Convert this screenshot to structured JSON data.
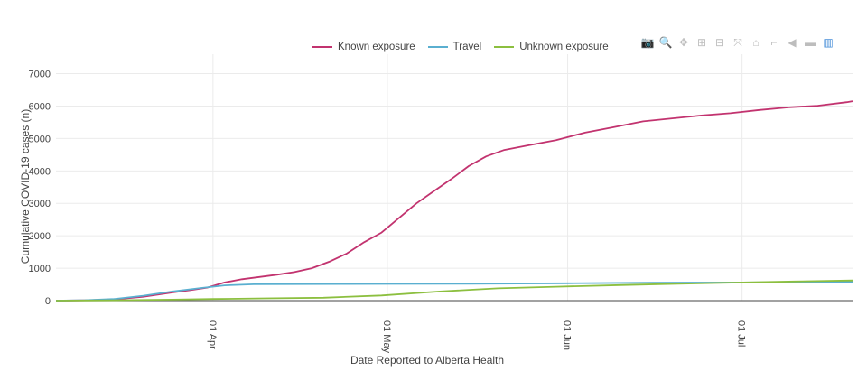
{
  "modebar": {
    "buttons": [
      {
        "name": "camera-icon",
        "glyph": "📷"
      },
      {
        "name": "zoom-icon",
        "glyph": "🔍"
      },
      {
        "name": "pan-icon",
        "glyph": "✥"
      },
      {
        "name": "zoom-in-icon",
        "glyph": "⊞"
      },
      {
        "name": "zoom-out-icon",
        "glyph": "⊟"
      },
      {
        "name": "autoscale-icon",
        "glyph": "⤧"
      },
      {
        "name": "home-icon",
        "glyph": "⌂"
      },
      {
        "name": "spike-lines-icon",
        "glyph": "⌐"
      },
      {
        "name": "hover-closest-icon",
        "glyph": "◀"
      },
      {
        "name": "hover-compare-icon",
        "glyph": "▬"
      },
      {
        "name": "plotly-logo-icon",
        "glyph": "▥"
      }
    ]
  },
  "chart_data": {
    "type": "line",
    "title": "",
    "xlabel": "Date Reported to Alberta Health",
    "ylabel": "Cumulative COVID-19 cases (n)",
    "xlim": [
      "2020-03-05",
      "2020-07-20"
    ],
    "ylim": [
      0,
      7600
    ],
    "yticks": [
      0,
      1000,
      2000,
      3000,
      4000,
      5000,
      6000,
      7000
    ],
    "xticks": [
      {
        "date": "2020-04-01",
        "label": "01 Apr"
      },
      {
        "date": "2020-05-01",
        "label": "01 May"
      },
      {
        "date": "2020-06-01",
        "label": "01 Jun"
      },
      {
        "date": "2020-07-01",
        "label": "01 Jul"
      }
    ],
    "grid": true,
    "legend_position": "top",
    "series": [
      {
        "name": "Known exposure",
        "color": "#c2336f",
        "points": [
          [
            "2020-03-05",
            0
          ],
          [
            "2020-03-10",
            10
          ],
          [
            "2020-03-15",
            40
          ],
          [
            "2020-03-20",
            120
          ],
          [
            "2020-03-25",
            250
          ],
          [
            "2020-03-28",
            320
          ],
          [
            "2020-03-31",
            400
          ],
          [
            "2020-04-03",
            560
          ],
          [
            "2020-04-06",
            660
          ],
          [
            "2020-04-09",
            730
          ],
          [
            "2020-04-12",
            800
          ],
          [
            "2020-04-15",
            880
          ],
          [
            "2020-04-18",
            1000
          ],
          [
            "2020-04-21",
            1200
          ],
          [
            "2020-04-24",
            1450
          ],
          [
            "2020-04-27",
            1800
          ],
          [
            "2020-04-30",
            2100
          ],
          [
            "2020-05-03",
            2550
          ],
          [
            "2020-05-06",
            3000
          ],
          [
            "2020-05-09",
            3380
          ],
          [
            "2020-05-12",
            3750
          ],
          [
            "2020-05-15",
            4150
          ],
          [
            "2020-05-18",
            4450
          ],
          [
            "2020-05-21",
            4640
          ],
          [
            "2020-05-25",
            4780
          ],
          [
            "2020-05-30",
            4950
          ],
          [
            "2020-06-04",
            5180
          ],
          [
            "2020-06-09",
            5350
          ],
          [
            "2020-06-14",
            5530
          ],
          [
            "2020-06-19",
            5620
          ],
          [
            "2020-06-24",
            5710
          ],
          [
            "2020-06-29",
            5780
          ],
          [
            "2020-07-04",
            5880
          ],
          [
            "2020-07-09",
            5960
          ],
          [
            "2020-07-14",
            6010
          ],
          [
            "2020-07-19",
            6120
          ],
          [
            "2020-07-20",
            6150
          ]
        ]
      },
      {
        "name": "Travel",
        "color": "#5aafd0",
        "points": [
          [
            "2020-03-05",
            0
          ],
          [
            "2020-03-10",
            15
          ],
          [
            "2020-03-15",
            50
          ],
          [
            "2020-03-20",
            150
          ],
          [
            "2020-03-25",
            280
          ],
          [
            "2020-03-30",
            390
          ],
          [
            "2020-04-03",
            470
          ],
          [
            "2020-04-08",
            505
          ],
          [
            "2020-04-15",
            510
          ],
          [
            "2020-05-01",
            515
          ],
          [
            "2020-05-15",
            520
          ],
          [
            "2020-06-01",
            535
          ],
          [
            "2020-06-15",
            550
          ],
          [
            "2020-07-01",
            560
          ],
          [
            "2020-07-20",
            580
          ]
        ]
      },
      {
        "name": "Unknown exposure",
        "color": "#8cbf3f",
        "points": [
          [
            "2020-03-05",
            0
          ],
          [
            "2020-03-15",
            10
          ],
          [
            "2020-03-25",
            30
          ],
          [
            "2020-04-01",
            50
          ],
          [
            "2020-04-10",
            70
          ],
          [
            "2020-04-20",
            90
          ],
          [
            "2020-04-30",
            160
          ],
          [
            "2020-05-10",
            280
          ],
          [
            "2020-05-20",
            380
          ],
          [
            "2020-05-30",
            430
          ],
          [
            "2020-06-10",
            480
          ],
          [
            "2020-06-20",
            520
          ],
          [
            "2020-07-01",
            560
          ],
          [
            "2020-07-10",
            590
          ],
          [
            "2020-07-20",
            620
          ]
        ]
      }
    ]
  }
}
